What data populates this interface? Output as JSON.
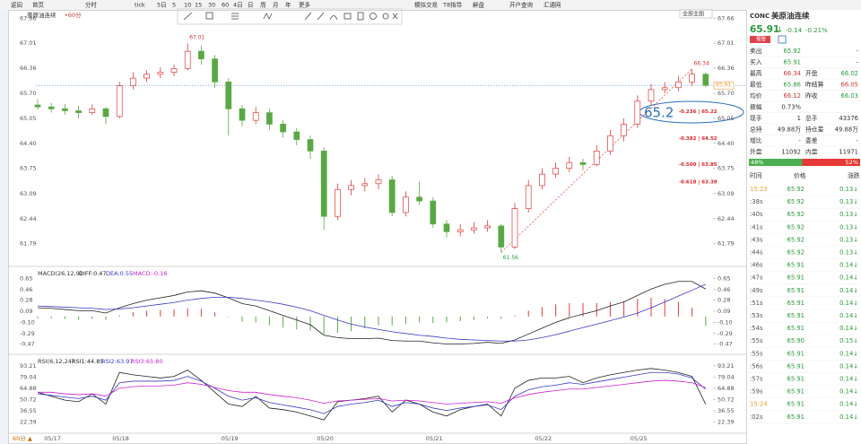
{
  "toolbar": {
    "items": [
      "返回",
      "首页",
      "分时",
      "tick",
      "5日",
      "5",
      "10",
      "15",
      "30",
      "60",
      "4日",
      "日",
      "周",
      "月",
      "年",
      "更多",
      "模拟交易",
      "T8指导",
      "解盘",
      "开户查询",
      "汇通网"
    ]
  },
  "chart": {
    "type": "candlestick",
    "title": "美原油连续",
    "period": "•60分",
    "main_selector": "全部主图",
    "footer": "60分 ▲",
    "candles": [
      [
        65.4,
        65.55,
        65.28,
        65.35
      ],
      [
        65.35,
        65.45,
        65.2,
        65.3
      ],
      [
        65.3,
        65.42,
        65.15,
        65.25
      ],
      [
        65.25,
        65.38,
        65.05,
        65.2
      ],
      [
        65.2,
        65.42,
        65.15,
        65.3
      ],
      [
        65.3,
        65.35,
        64.9,
        65.1
      ],
      [
        65.1,
        66.0,
        65.05,
        65.9
      ],
      [
        65.9,
        66.25,
        65.8,
        66.1
      ],
      [
        66.1,
        66.3,
        66.0,
        66.2
      ],
      [
        66.2,
        66.38,
        66.1,
        66.25
      ],
      [
        66.25,
        66.45,
        66.15,
        66.35
      ],
      [
        66.35,
        67.01,
        66.3,
        66.8
      ],
      [
        66.8,
        66.95,
        66.45,
        66.6
      ],
      [
        66.6,
        66.7,
        65.85,
        66.0
      ],
      [
        66.0,
        66.1,
        64.6,
        65.3
      ],
      [
        65.3,
        65.4,
        64.85,
        65.0
      ],
      [
        65.0,
        65.35,
        64.9,
        65.2
      ],
      [
        65.2,
        65.3,
        64.75,
        64.9
      ],
      [
        64.9,
        65.0,
        64.55,
        64.7
      ],
      [
        64.7,
        64.8,
        64.35,
        64.5
      ],
      [
        64.5,
        64.6,
        64.0,
        64.2
      ],
      [
        64.2,
        64.3,
        62.15,
        62.5
      ],
      [
        62.5,
        63.35,
        62.4,
        63.2
      ],
      [
        63.2,
        63.45,
        63.05,
        63.3
      ],
      [
        63.3,
        63.5,
        63.15,
        63.35
      ],
      [
        63.35,
        63.6,
        63.2,
        63.45
      ],
      [
        63.45,
        63.55,
        62.5,
        62.6
      ],
      [
        62.6,
        63.15,
        62.5,
        63.0
      ],
      [
        63.0,
        63.4,
        62.8,
        62.9
      ],
      [
        62.9,
        63.0,
        62.2,
        62.3
      ],
      [
        62.3,
        62.4,
        61.95,
        62.1
      ],
      [
        62.1,
        62.3,
        61.98,
        62.15
      ],
      [
        62.15,
        62.35,
        62.05,
        62.2
      ],
      [
        62.2,
        62.4,
        62.1,
        62.25
      ],
      [
        62.25,
        62.3,
        61.56,
        61.7
      ],
      [
        61.7,
        62.85,
        61.65,
        62.7
      ],
      [
        62.7,
        63.45,
        62.6,
        63.3
      ],
      [
        63.3,
        63.75,
        63.2,
        63.6
      ],
      [
        63.6,
        63.9,
        63.5,
        63.75
      ],
      [
        63.75,
        64.05,
        63.65,
        63.9
      ],
      [
        63.9,
        64.0,
        63.7,
        63.85
      ],
      [
        63.85,
        64.35,
        63.8,
        64.2
      ],
      [
        64.2,
        64.75,
        64.1,
        64.6
      ],
      [
        64.6,
        65.05,
        64.45,
        64.9
      ],
      [
        64.9,
        65.65,
        64.8,
        65.5
      ],
      [
        65.5,
        65.95,
        65.4,
        65.8
      ],
      [
        65.8,
        66.0,
        65.7,
        65.85
      ],
      [
        65.85,
        66.15,
        65.75,
        66.0
      ],
      [
        66.0,
        66.34,
        65.9,
        66.2
      ],
      [
        66.2,
        66.25,
        65.86,
        65.91
      ]
    ],
    "dates": [
      null,
      "05/17",
      null,
      null,
      null,
      null,
      "05/18",
      null,
      null,
      null,
      null,
      null,
      null,
      null,
      "05/19",
      null,
      null,
      null,
      null,
      null,
      null,
      "05/20",
      null,
      null,
      null,
      null,
      null,
      null,
      null,
      "05/21",
      null,
      null,
      null,
      null,
      null,
      null,
      null,
      "05/22",
      null,
      null,
      null,
      null,
      null,
      null,
      "05/25",
      null,
      null,
      null,
      null,
      null
    ],
    "up_color": "#e03a3a",
    "down_color": "#5aa845",
    "ylim": [
      61.5,
      67.9
    ],
    "yticks": [
      67.66,
      67.01,
      66.36,
      {
        "value": 65.7,
        "label": "65.70"
      },
      65.05,
      {
        "value": 64.4,
        "label": "64.40"
      },
      63.75,
      63.09,
      62.44,
      61.79
    ],
    "fibonacci": [
      {
        "value": 65.22,
        "label": "0.236 | 65.22"
      },
      {
        "value": 64.52,
        "label": "0.382 | 64.52"
      },
      {
        "value": 63.85,
        "label": "0.500 | 63.85"
      },
      {
        "value": 63.39,
        "label": "0.618 | 63.39"
      }
    ],
    "note": "65.2",
    "macd": {
      "title": "MACD(26,12,9)",
      "ylim": [
        -0.6,
        0.75
      ],
      "yticks": [
        0.65,
        0.46,
        0.28,
        0.09,
        {
          "value": -0.1,
          "label": "-0.10"
        },
        -0.29,
        -0.47
      ],
      "series": [
        {
          "name": "DIFF:0.47",
          "color": "#222222",
          "values": [
            0.15,
            0.14,
            0.12,
            0.1,
            0.1,
            0.06,
            0.15,
            0.22,
            0.28,
            0.32,
            0.36,
            0.42,
            0.44,
            0.4,
            0.32,
            0.22,
            0.18,
            0.1,
            0.02,
            -0.06,
            -0.14,
            -0.32,
            -0.36,
            -0.38,
            -0.38,
            -0.37,
            -0.41,
            -0.42,
            -0.42,
            -0.45,
            -0.47,
            -0.47,
            -0.46,
            -0.44,
            -0.46,
            -0.4,
            -0.3,
            -0.2,
            -0.1,
            -0.02,
            0.04,
            0.1,
            0.18,
            0.25,
            0.36,
            0.47,
            0.55,
            0.6,
            0.6,
            0.47
          ]
        },
        {
          "name": "DEA:0.55",
          "color": "#3838c8",
          "values": [
            0.18,
            0.17,
            0.16,
            0.15,
            0.14,
            0.12,
            0.13,
            0.15,
            0.18,
            0.21,
            0.24,
            0.28,
            0.31,
            0.33,
            0.33,
            0.31,
            0.28,
            0.25,
            0.21,
            0.16,
            0.1,
            0.02,
            -0.06,
            -0.13,
            -0.18,
            -0.22,
            -0.26,
            -0.29,
            -0.32,
            -0.34,
            -0.37,
            -0.39,
            -0.4,
            -0.41,
            -0.42,
            -0.42,
            -0.4,
            -0.36,
            -0.31,
            -0.25,
            -0.19,
            -0.13,
            -0.07,
            -0.01,
            0.06,
            0.15,
            0.25,
            0.35,
            0.45,
            0.55
          ]
        },
        {
          "name": "MACD:-0.16",
          "color": "#d020d0",
          "values": [
            -0.03,
            -0.03,
            -0.04,
            -0.05,
            -0.04,
            -0.06,
            0.02,
            0.07,
            0.1,
            0.11,
            0.12,
            0.14,
            0.13,
            0.07,
            -0.01,
            -0.09,
            -0.1,
            -0.15,
            -0.19,
            -0.22,
            -0.24,
            -0.3,
            -0.28,
            -0.25,
            -0.2,
            -0.15,
            -0.15,
            -0.13,
            -0.1,
            -0.11,
            -0.1,
            -0.08,
            -0.06,
            -0.03,
            -0.04,
            0.02,
            0.1,
            0.16,
            0.21,
            0.23,
            0.23,
            0.23,
            0.25,
            0.26,
            0.3,
            0.32,
            0.3,
            0.25,
            0.15,
            -0.16
          ]
        }
      ]
    },
    "rsi": {
      "title": "RSI(6,12,24)",
      "ylim": [
        15,
        100
      ],
      "yticks": [
        93.21,
        79.04,
        64.88,
        50.72,
        36.55,
        22.39
      ],
      "series": [
        {
          "name": "RSI1:44.85",
          "color": "#222222",
          "values": [
            60,
            55,
            50,
            48,
            58,
            45,
            85,
            82,
            80,
            78,
            80,
            88,
            75,
            60,
            45,
            42,
            55,
            40,
            38,
            35,
            30,
            25,
            48,
            50,
            52,
            55,
            35,
            50,
            45,
            35,
            30,
            38,
            42,
            45,
            30,
            65,
            75,
            78,
            78,
            80,
            72,
            78,
            82,
            85,
            88,
            90,
            88,
            85,
            80,
            44.85
          ]
        },
        {
          "name": "RSI2:63.97",
          "color": "#3838c8",
          "values": [
            58,
            56,
            54,
            52,
            55,
            50,
            72,
            74,
            74,
            74,
            75,
            80,
            74,
            65,
            55,
            50,
            53,
            47,
            44,
            41,
            38,
            33,
            42,
            45,
            47,
            50,
            42,
            47,
            45,
            40,
            37,
            40,
            42,
            44,
            38,
            55,
            63,
            67,
            69,
            72,
            70,
            73,
            76,
            79,
            82,
            85,
            85,
            83,
            78,
            63.97
          ]
        },
        {
          "name": "RSI3:65.80",
          "color": "#d020d0",
          "values": [
            60,
            60,
            58,
            57,
            58,
            55,
            65,
            67,
            68,
            68,
            69,
            72,
            70,
            66,
            62,
            60,
            60,
            57,
            55,
            53,
            50,
            46,
            49,
            50,
            51,
            52,
            49,
            50,
            49,
            47,
            45,
            46,
            47,
            48,
            46,
            53,
            57,
            60,
            62,
            64,
            64,
            66,
            68,
            70,
            72,
            74,
            75,
            74,
            72,
            65.8
          ]
        }
      ]
    }
  },
  "quote": {
    "symbol": "CONC",
    "name": "美原油连续",
    "price": "65.91",
    "arrow": "↓",
    "change": "-0.14",
    "change_pct": "-0.21%",
    "alert": "预警",
    "rows": [
      [
        "卖出",
        "65.92",
        "-"
      ],
      [
        "买入",
        "65.91",
        "-"
      ],
      [
        "最高",
        "66.34",
        "开盘",
        "66.02"
      ],
      [
        "最低",
        "65.86",
        "昨结算",
        "66.05"
      ],
      [
        "均价",
        "66.12",
        "昨收",
        "66.03"
      ],
      [
        "振幅",
        "0.73%"
      ],
      [
        "现手",
        "1",
        "总手",
        "43376"
      ],
      [
        "总持",
        "49.88万",
        "持仓差",
        "49.88万"
      ],
      [
        "增比",
        "-",
        "委差",
        "-"
      ],
      [
        "外盘",
        "11092",
        "内盘",
        "11971"
      ]
    ],
    "outer": {
      "value": 48,
      "label": "48%"
    },
    "inner": {
      "value": 52,
      "label": "52%"
    },
    "tick_header": [
      "时间",
      "价格",
      "涨跌"
    ],
    "ticks": [
      [
        "15:23",
        "65.92",
        "0.13↓"
      ],
      [
        ":38s",
        "65.92",
        "0.13↓"
      ],
      [
        ":40s",
        "65.92",
        "0.13↓"
      ],
      [
        ":41s",
        "65.92",
        "0.13↓"
      ],
      [
        ":43s",
        "65.92",
        "0.13↓"
      ],
      [
        ":44s",
        "65.92",
        "0.13↓"
      ],
      [
        ":46s",
        "65.91",
        "0.14↓"
      ],
      [
        ":47s",
        "65.91",
        "0.14↓"
      ],
      [
        ":49s",
        "65.91",
        "0.14↓"
      ],
      [
        ":51s",
        "65.91",
        "0.14↓"
      ],
      [
        ":53s",
        "65.91",
        "0.14↓"
      ],
      [
        ":54s",
        "65.91",
        "0.14↓"
      ],
      [
        ":55s",
        "65.90",
        "0.15↓"
      ],
      [
        ":55s",
        "65.91",
        "0.14↓"
      ],
      [
        ":56s",
        "65.91",
        "0.14↓"
      ],
      [
        ":57s",
        "65.91",
        "0.14↓"
      ],
      [
        ":59s",
        "65.91",
        "0.14↓"
      ],
      [
        "15:24",
        "65.91",
        "0.14↓"
      ],
      [
        ":02s",
        "65.91",
        "0.14↓"
      ]
    ]
  }
}
